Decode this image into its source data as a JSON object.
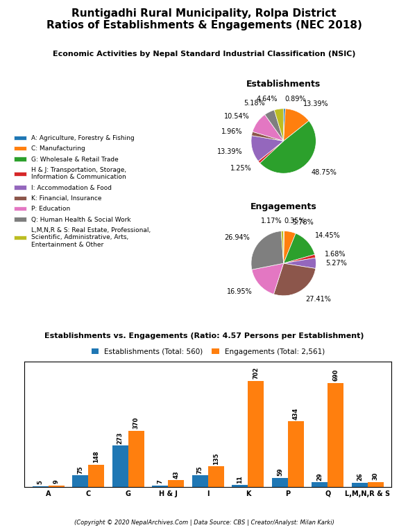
{
  "title": "Runtigadhi Rural Municipality, Rolpa District\nRatios of Establishments & Engagements (NEC 2018)",
  "subtitle": "Economic Activities by Nepal Standard Industrial Classification (NSIC)",
  "footer": "(Copyright © 2020 NepalArchives.Com | Data Source: CBS | Creator/Analyst: Milan Karki)",
  "chart_data": [
    {
      "type": "pie",
      "title": "Establishments",
      "categories": [
        "A: Agriculture, Forestry & Fishing",
        "C: Manufacturing",
        "G: Wholesale & Retail Trade",
        "H & J: Transportation, Storage,\nInformation & Communication",
        "I: Accommodation & Food",
        "K: Financial, Insurance",
        "P: Education",
        "Q: Human Health & Social Work",
        "L,M,N,R & S: Real Estate, Professional,\nScientific, Administrative, Arts,\nEntertainment & Other"
      ],
      "values": [
        0.89,
        13.39,
        48.75,
        1.25,
        13.39,
        1.96,
        10.54,
        5.18,
        4.64
      ],
      "value_labels": [
        "0.89%",
        "13.39%",
        "48.75%",
        "1.25%",
        "13.39%",
        "1.96%",
        "10.54%",
        "5.18%",
        "4.64%"
      ],
      "data_labels": true,
      "legend": "center left"
    },
    {
      "type": "pie",
      "title": "Engagements",
      "categories": [
        "A: Agriculture, Forestry & Fishing",
        "C: Manufacturing",
        "G: Wholesale & Retail Trade",
        "H & J: Transportation, Storage,\nInformation & Communication",
        "I: Accommodation & Food",
        "K: Financial, Insurance",
        "P: Education",
        "Q: Human Health & Social Work",
        "L,M,N,R & S: Real Estate, Professional,\nScientific, Administrative, Arts,\nEntertainment & Other"
      ],
      "values": [
        0.35,
        5.78,
        14.45,
        1.68,
        5.27,
        27.41,
        16.95,
        26.94,
        1.17
      ],
      "value_labels": [
        "0.35%",
        "5.78%",
        "14.45%",
        "1.68%",
        "5.27%",
        "27.41%",
        "16.95%",
        "26.94%",
        "1.17%"
      ],
      "data_labels": true
    },
    {
      "type": "bar",
      "title": "Establishments vs. Engagements (Ratio: 4.57 Persons per Establishment)",
      "categories": [
        "A",
        "C",
        "G",
        "H & J",
        "I",
        "K",
        "P",
        "Q",
        "L,M,N,R & S"
      ],
      "series": [
        {
          "name": "Establishments (Total: 560)",
          "values": [
            5,
            75,
            273,
            7,
            75,
            11,
            59,
            29,
            26
          ]
        },
        {
          "name": "Engagements (Total: 2,561)",
          "values": [
            9,
            148,
            370,
            43,
            135,
            702,
            434,
            690,
            30
          ]
        }
      ],
      "ylim": [
        0,
        830
      ],
      "tick_labels": "x",
      "data_labels": true,
      "legend": "upper center"
    }
  ]
}
